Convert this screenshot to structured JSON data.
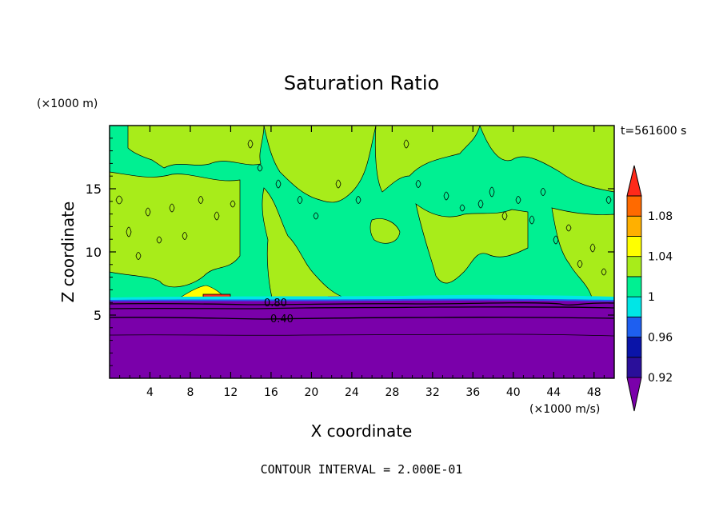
{
  "chart_data": {
    "type": "heatmap",
    "title": "Saturation Ratio",
    "xlabel": "X coordinate",
    "ylabel": "Z coordinate",
    "x_unit": "(×1000 m/s)",
    "y_unit": "(×1000 m)",
    "time_label": "t=561600 s",
    "footer": "CONTOUR INTERVAL = 2.000E-01",
    "xlim": [
      0,
      50
    ],
    "ylim": [
      0,
      20
    ],
    "x_ticks": [
      4,
      8,
      12,
      16,
      20,
      24,
      28,
      32,
      36,
      40,
      44,
      48
    ],
    "y_ticks": [
      5,
      10,
      15
    ],
    "x_tick_labels": [
      "4",
      "8",
      "12",
      "16",
      "20",
      "24",
      "28",
      "32",
      "36",
      "40",
      "44",
      "48"
    ],
    "y_tick_labels": [
      "5",
      "10",
      "15"
    ],
    "contour_labels": [
      {
        "text": "0.80",
        "x": 16.2,
        "y": 5.9
      },
      {
        "text": "0.40",
        "x": 17.0,
        "y": 4.8
      }
    ],
    "colorbar": {
      "levels": [
        0.92,
        0.94,
        0.96,
        0.98,
        1.0,
        1.02,
        1.04,
        1.06,
        1.08,
        1.1
      ],
      "tick_labels": [
        {
          "value": 0.92,
          "text": "0.92"
        },
        {
          "value": 0.96,
          "text": "0.96"
        },
        {
          "value": 1.0,
          "text": "1"
        },
        {
          "value": 1.04,
          "text": "1.04"
        },
        {
          "value": 1.08,
          "text": "1.08"
        }
      ],
      "colors": [
        "#7a00aa",
        "#2a0f9a",
        "#0a14a8",
        "#1e5ff0",
        "#00e6e6",
        "#00f092",
        "#a8ec1a",
        "#ffff00",
        "#ffb000",
        "#ff6a00",
        "#ff2a1a",
        "#f4a6a6"
      ]
    },
    "fields": {
      "low_region_value": "<0.92",
      "cloud_base_height": 6.3,
      "dominant_values_above_base": [
        0.98,
        1.0
      ]
    }
  }
}
